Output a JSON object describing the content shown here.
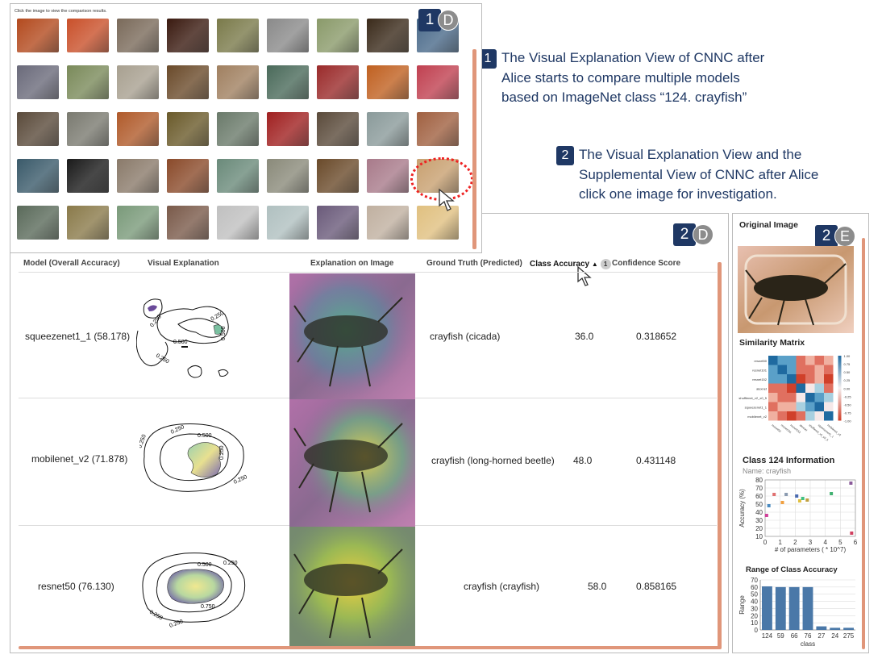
{
  "top": {
    "hint": "Click the image to view the comparison results.",
    "badge_num": "1",
    "badge_letter": "D",
    "thumb_colors": [
      [
        "#b34a1e",
        "#c9502a",
        "#7a6a5a",
        "#3a1a10",
        "#7a7a4a",
        "#8a8a8a",
        "#8a9a6a",
        "#3a2a1a",
        "#4a6a8a"
      ],
      [
        "#6a6a7a",
        "#7a8a5a",
        "#a8a090",
        "#6a4a2a",
        "#a08060",
        "#4a6a5a",
        "#9a2a2a",
        "#c06020",
        "#c04050"
      ],
      [
        "#5a4a3a",
        "#7a7a70",
        "#b05a2a",
        "#6a5a2a",
        "#6a7a6a",
        "#a02020",
        "#5a4a3a",
        "#8a9a9a",
        "#a06040"
      ],
      [
        "#3a5a6a",
        "#1a1a1a",
        "#8a7a6a",
        "#8a4a2a",
        "#6a8a7a",
        "#8a8a7a",
        "#6a4a2a",
        "#a87a8a",
        "#c8a070"
      ],
      [
        "#5a6a5a",
        "#8a7a4a",
        "#7a9a7a",
        "#7a5a4a",
        "#c0c0c0",
        "#b0c0c0",
        "#6a5a7a",
        "#c0b0a0",
        "#e0c080"
      ]
    ]
  },
  "annotations": {
    "a1_num": "1",
    "a1_l1": "The Visual Explanation View of CNNC after",
    "a1_l2": "Alice starts to compare multiple models",
    "a1_l3": "based on ImageNet class “124. crayfish”",
    "a2_num": "2",
    "a2_l1": "The Visual Explanation View and the",
    "a2_l2": "Supplemental View of CNNC after Alice",
    "a2_l3": "click one image for investigation."
  },
  "table": {
    "badge_num": "2",
    "badge_letter": "D",
    "headers": {
      "model": "Model (Overall Accuracy)",
      "visual": "Visual Explanation",
      "on_image": "Explanation on Image",
      "ground": "Ground Truth (Predicted)",
      "class_acc": "Class Accuracy",
      "sort_rank": "1",
      "confidence": "Confidence Score"
    },
    "rows": [
      {
        "model": "squeezenet1_1 (58.178)",
        "ground": "crayfish (cicada)",
        "acc": "36.0",
        "conf": "0.318652",
        "c1": "0.250",
        "c2": "0.500",
        "c3": "0.500",
        "c4": "0.250",
        "c5": "0.250"
      },
      {
        "model": "mobilenet_v2 (71.878)",
        "ground": "crayfish (long-horned beetle)",
        "acc": "48.0",
        "conf": "0.431148",
        "c1": "0.250",
        "c2": "0.500",
        "c3": "0.250",
        "c4": "0.250",
        "c5": "0.250"
      },
      {
        "model": "resnet50 (76.130)",
        "ground": "crayfish (crayfish)",
        "acc": "58.0",
        "conf": "0.858165",
        "c1": "0.500",
        "c2": "0.250",
        "c3": "0.750",
        "c4": "0.250",
        "c5": "0.250"
      }
    ]
  },
  "side": {
    "badge_num": "2",
    "badge_letter": "E",
    "original_title": "Original Image",
    "similarity_title": "Similarity Matrix",
    "sim_rows": [
      "resnet50",
      "resnet101",
      "resnet152",
      "alexnet",
      "shufflenet_v2_x0_5",
      "squeezenet1_1",
      "mobilenet_v2"
    ],
    "sim_scale": [
      "1.00",
      "0.75",
      "0.50",
      "0.25",
      "0.00",
      "-0.25",
      "-0.50",
      "-0.75",
      "-1.00"
    ],
    "class_title": "Class 124 Information",
    "class_name": "Name: crayfish",
    "range_title": "Range of Class Accuracy"
  },
  "chart_data": [
    {
      "type": "scatter",
      "xlabel": "# of parameters ( * 10^7)",
      "ylabel": "Accuracy (%)",
      "xlim": [
        0,
        6
      ],
      "ylim": [
        10,
        80
      ],
      "xticks": [
        "0",
        "1",
        "2",
        "3",
        "4",
        "5",
        "6"
      ],
      "yticks": [
        "10",
        "20",
        "30",
        "40",
        "50",
        "60",
        "70",
        "80"
      ],
      "points": [
        {
          "x": 0.1,
          "y": 36,
          "color": "#d0409a"
        },
        {
          "x": 0.25,
          "y": 48,
          "color": "#4a8ac0"
        },
        {
          "x": 0.6,
          "y": 62,
          "color": "#e07070"
        },
        {
          "x": 1.15,
          "y": 52,
          "color": "#f0a040"
        },
        {
          "x": 1.4,
          "y": 62,
          "color": "#8a9ab0"
        },
        {
          "x": 2.1,
          "y": 60,
          "color": "#4a6ab0"
        },
        {
          "x": 2.3,
          "y": 54,
          "color": "#e0c040"
        },
        {
          "x": 2.5,
          "y": 57,
          "color": "#40c080"
        },
        {
          "x": 2.8,
          "y": 55,
          "color": "#c0a040"
        },
        {
          "x": 4.4,
          "y": 63,
          "color": "#40b070"
        },
        {
          "x": 5.7,
          "y": 76,
          "color": "#8a5a9a"
        },
        {
          "x": 5.75,
          "y": 14,
          "color": "#d04060"
        }
      ]
    },
    {
      "type": "bar",
      "xlabel": "class",
      "ylabel": "Range",
      "ylim": [
        0,
        70
      ],
      "yticks": [
        "0",
        "10",
        "20",
        "30",
        "40",
        "50",
        "60",
        "70"
      ],
      "categories": [
        "124",
        "59",
        "66",
        "76",
        "27",
        "24",
        "275"
      ],
      "values": [
        61,
        60,
        60,
        60,
        5,
        3,
        3
      ],
      "color": "#4a78a8"
    }
  ]
}
